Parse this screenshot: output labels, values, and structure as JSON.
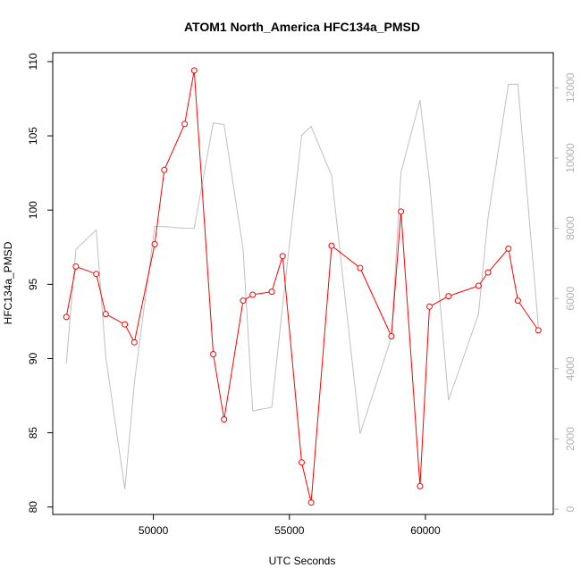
{
  "chart_data": {
    "type": "line",
    "title": "ATOM1 North_America HFC134a_PMSD",
    "xlabel": "UTC Seconds",
    "ylabel": "HFC134a_PMSD",
    "y2label": "",
    "xlim": [
      46300,
      64700
    ],
    "ylim": [
      79.5,
      110.6
    ],
    "y2lim": [
      -150,
      13000
    ],
    "x_ticks": [
      50000,
      55000,
      60000
    ],
    "x_tick_labels": [
      "50000",
      "55000",
      "60000"
    ],
    "y_ticks": [
      80,
      85,
      90,
      95,
      100,
      105,
      110
    ],
    "y_tick_labels": [
      "80",
      "85",
      "90",
      "95",
      "100",
      "105",
      "110"
    ],
    "y2_ticks": [
      0,
      2000,
      4000,
      6000,
      8000,
      10000,
      12000
    ],
    "y2_tick_labels": [
      "0",
      "2000",
      "4000",
      "6000",
      "8000",
      "10000",
      "12000"
    ],
    "grid": false,
    "colors": {
      "primary": "#ff0000",
      "secondary": "#c0c0c0",
      "axis": "#000000",
      "axis2": "#b3b3b3"
    },
    "series": [
      {
        "axis": "left",
        "style": "line-points",
        "x": [
          46800,
          47150,
          47900,
          48250,
          48950,
          49300,
          50050,
          50400,
          51150,
          51500,
          52200,
          52600,
          53300,
          53650,
          54350,
          54750,
          55450,
          55800,
          56550,
          57600,
          58750,
          59100,
          59800,
          60150,
          60850,
          61950,
          62300,
          63050,
          63400,
          64150
        ],
        "values": [
          92.8,
          96.2,
          95.7,
          93.0,
          92.3,
          91.1,
          97.7,
          102.7,
          105.8,
          109.4,
          90.3,
          85.9,
          93.9,
          94.3,
          94.5,
          96.9,
          83.0,
          80.3,
          97.6,
          96.1,
          91.5,
          99.9,
          81.4,
          93.5,
          94.2,
          94.9,
          95.8,
          97.4,
          93.9,
          91.9
        ]
      },
      {
        "axis": "right",
        "style": "line",
        "x": [
          46800,
          47150,
          47900,
          48250,
          48950,
          49300,
          50050,
          50400,
          51150,
          51500,
          52200,
          52600,
          53300,
          53650,
          54350,
          54750,
          55450,
          55800,
          56550,
          57600,
          58750,
          59100,
          59800,
          60150,
          60850,
          61950,
          62300,
          63050,
          63400,
          64150
        ],
        "values": [
          4150,
          7400,
          7950,
          4350,
          570,
          3600,
          8050,
          8050,
          8000,
          8000,
          11000,
          10950,
          7400,
          2800,
          2900,
          5800,
          10650,
          10900,
          9500,
          2150,
          4900,
          9600,
          11650,
          9350,
          3100,
          5550,
          8300,
          12100,
          12100,
          5200
        ]
      }
    ]
  }
}
